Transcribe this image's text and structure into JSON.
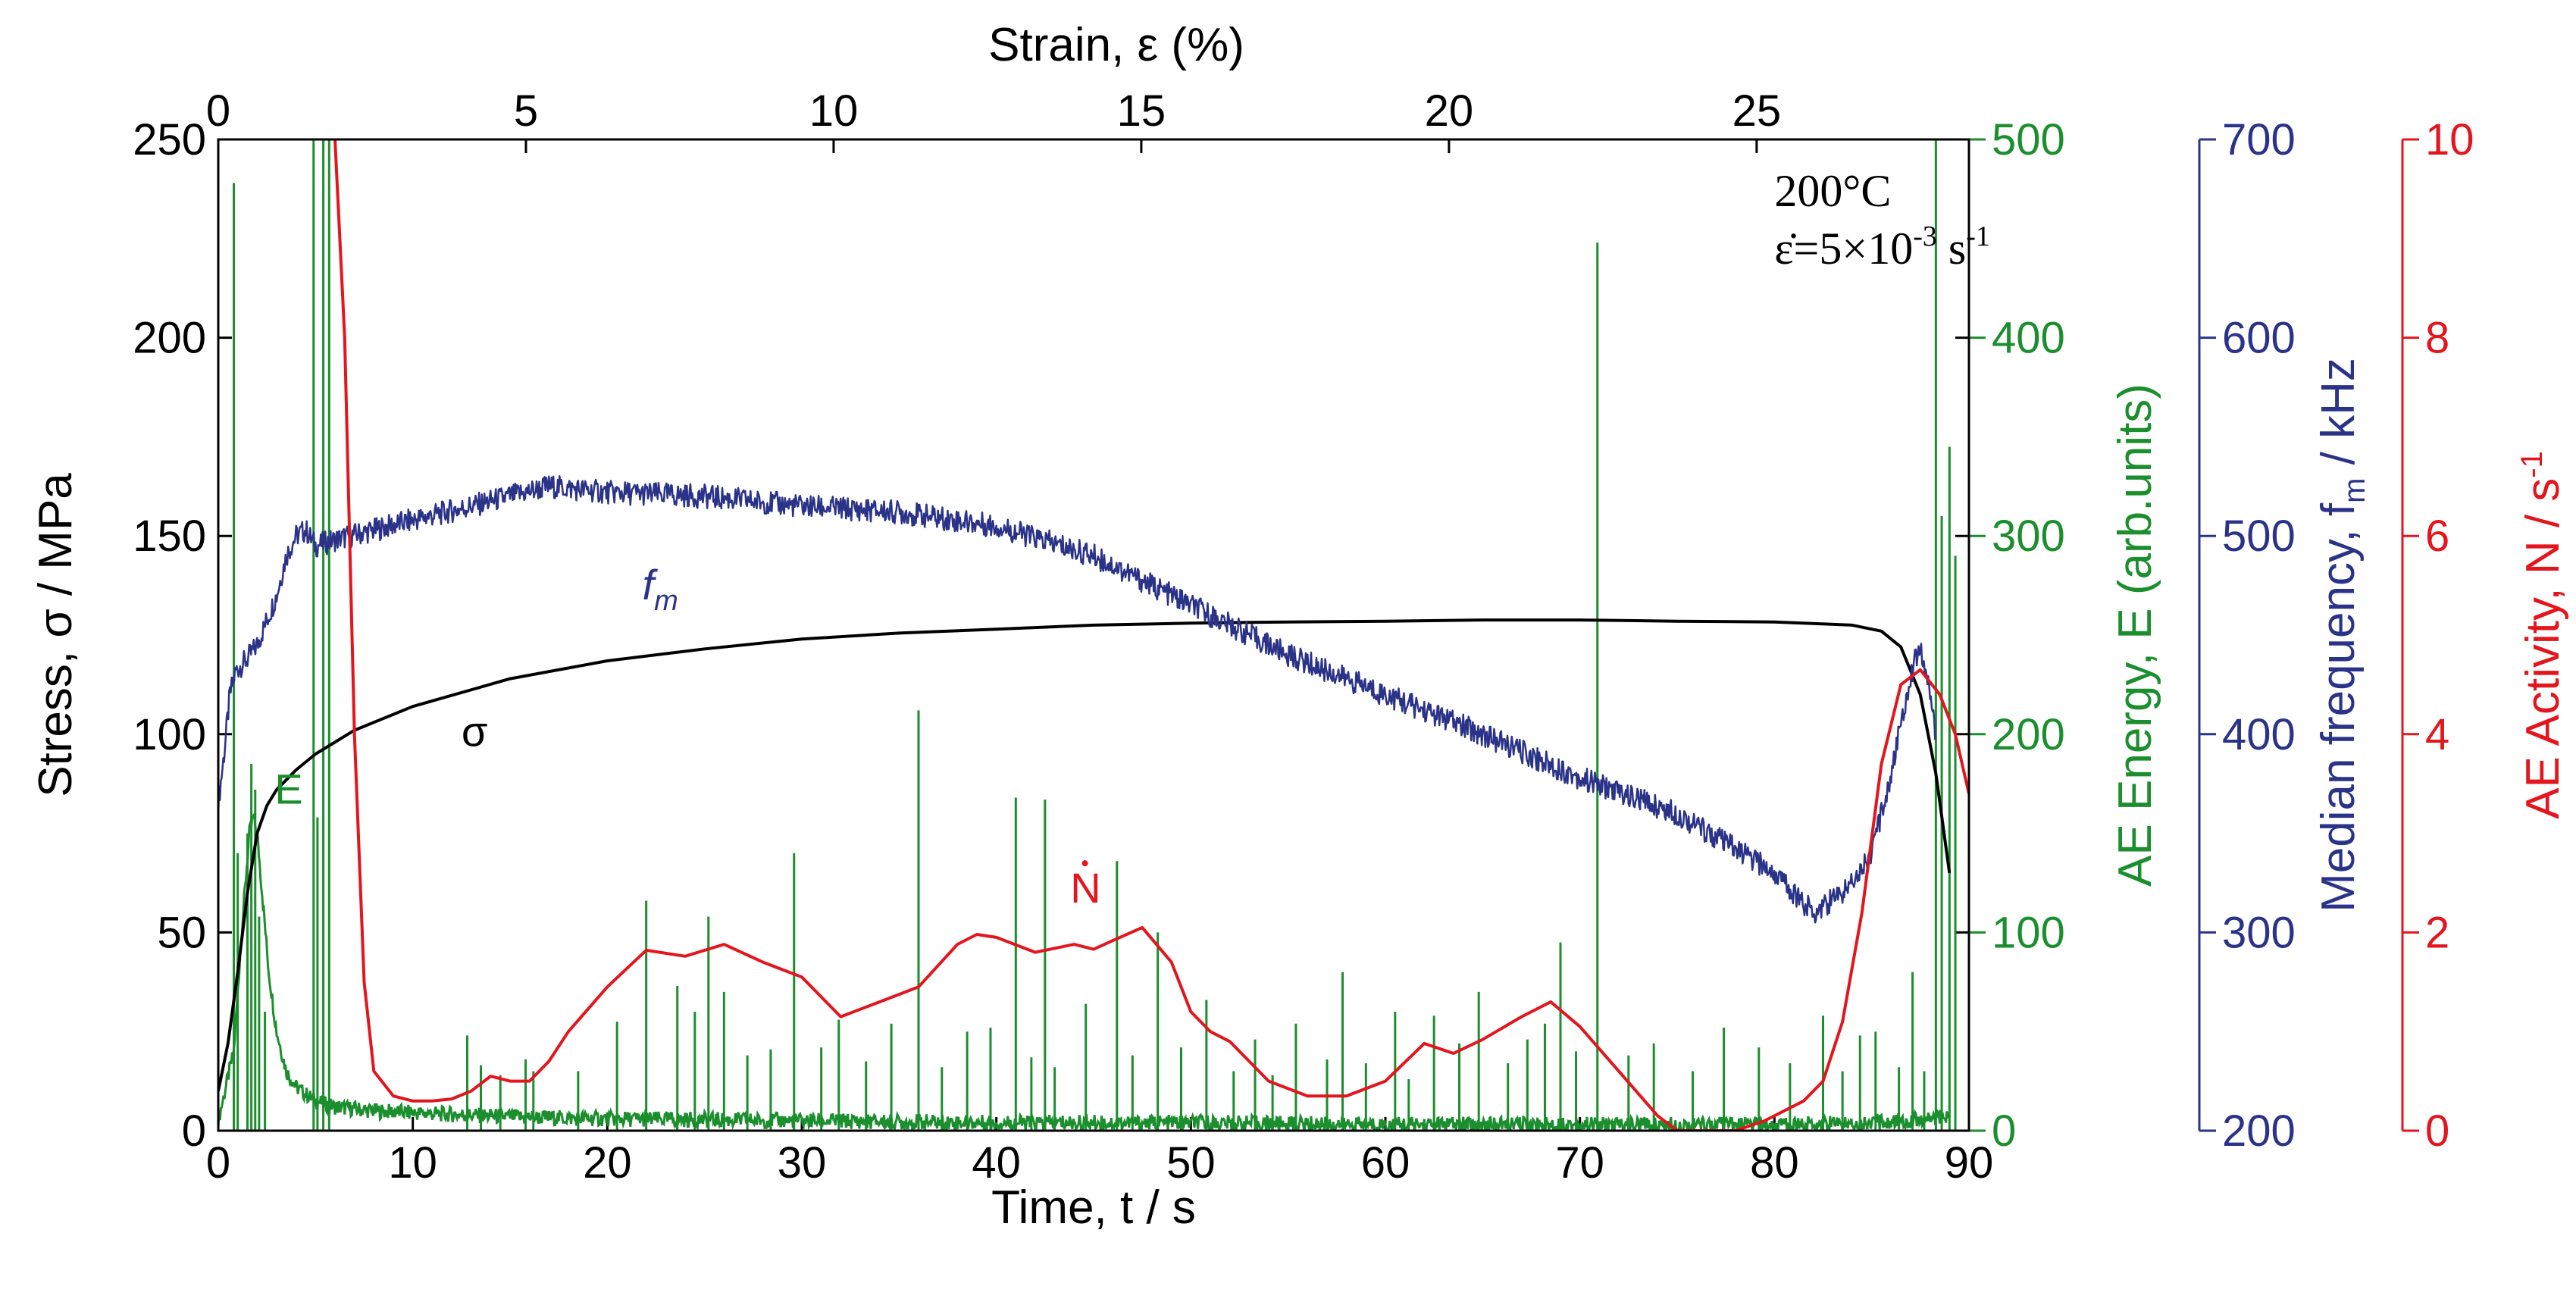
{
  "chart_data": {
    "type": "line",
    "annotation": {
      "temperature": "200°C",
      "rate_prefix": "ε̇=5×10",
      "rate_exp": "-3",
      "rate_unit": " s",
      "rate_unit_exp": "-1"
    },
    "axes": {
      "x_bottom": {
        "label": "Time, t / s",
        "range": [
          0,
          90
        ],
        "ticks": [
          0,
          10,
          20,
          30,
          40,
          50,
          60,
          70,
          80,
          90
        ],
        "color": "#000000"
      },
      "x_top": {
        "label": "Strain, ε (%)",
        "range": [
          0,
          28.45
        ],
        "ticks": [
          0,
          5,
          10,
          15,
          20,
          25
        ],
        "color": "#000000"
      },
      "y_stress": {
        "label": "Stress, σ / MPa",
        "range": [
          0,
          250
        ],
        "ticks": [
          0,
          50,
          100,
          150,
          200,
          250
        ],
        "color": "#000000"
      },
      "y_energy": {
        "label": "AE Energy, E (arb.units)",
        "range": [
          0,
          500
        ],
        "ticks": [
          0,
          100,
          200,
          300,
          400,
          500
        ],
        "color": "#1b8e2d"
      },
      "y_freq": {
        "label_prefix": "Median frequency, f",
        "label_sub": "m",
        "label_suffix": " / kHz",
        "range": [
          200,
          700
        ],
        "ticks": [
          200,
          300,
          400,
          500,
          600,
          700
        ],
        "color": "#2b3388"
      },
      "y_activity": {
        "label_prefix": "AE Activity, ",
        "label_dot": "N",
        "label_suffix": " / s",
        "label_exp": "-1",
        "range": [
          0,
          10
        ],
        "ticks": [
          0,
          2,
          4,
          6,
          8,
          10
        ],
        "color": "#e3151d"
      }
    },
    "series": [
      {
        "name": "σ",
        "label": "σ",
        "axis": "y_stress",
        "color": "#000000",
        "x": [
          0,
          0.5,
          1.0,
          1.5,
          2.0,
          2.5,
          3.0,
          4.0,
          5.0,
          7.0,
          10.0,
          15.0,
          20.0,
          25.0,
          30.0,
          35.0,
          40.0,
          45.0,
          50.0,
          55.0,
          60.0,
          65.0,
          70.0,
          75.0,
          80.0,
          84.0,
          85.5,
          86.5,
          87.5,
          88.3,
          89.0
        ],
        "values": [
          10,
          22,
          40,
          60,
          75,
          82,
          86,
          91,
          95,
          101,
          107,
          114,
          118.5,
          121.5,
          124,
          125.5,
          126.5,
          127.5,
          128,
          128.3,
          128.5,
          128.8,
          128.8,
          128.5,
          128.3,
          127.5,
          126,
          122,
          110,
          90,
          65
        ]
      },
      {
        "name": "f",
        "label_base": "f",
        "label_sub": "m",
        "axis": "y_freq",
        "color": "#2b3388",
        "x": [
          0,
          0.3,
          0.6,
          0.9,
          1.5,
          2.0,
          3.0,
          3.5,
          4.0,
          4.5,
          5.0,
          6.0,
          8.0,
          10.0,
          13.0,
          17.0,
          20.0,
          25.0,
          30.0,
          35.0,
          40.0,
          45.0,
          50.0,
          55.0,
          60.0,
          65.0,
          70.0,
          75.0,
          80.0,
          82.0,
          83.5,
          85.0,
          86.0,
          87.0,
          87.5,
          88.0,
          88.3
        ],
        "values": [
          365,
          390,
          420,
          432,
          438,
          445,
          470,
          490,
          500,
          503,
          495,
          498,
          503,
          508,
          515,
          525,
          522,
          520,
          515,
          512,
          505,
          490,
          465,
          440,
          420,
          400,
          378,
          360,
          330,
          310,
          320,
          340,
          380,
          430,
          445,
          420,
          400
        ]
      },
      {
        "name": "Ṅ",
        "label": "N",
        "axis": "y_activity",
        "color": "#e3151d",
        "x": [
          6.0,
          6.5,
          7.0,
          7.5,
          8.0,
          9.0,
          10.0,
          11.0,
          12.0,
          13.0,
          14.0,
          15.0,
          16.0,
          17.0,
          18.0,
          20.0,
          22.0,
          24.0,
          26.0,
          28.0,
          30.0,
          32.0,
          34.0,
          36.0,
          38.0,
          39.0,
          40.0,
          42.0,
          44.0,
          45.0,
          46.0,
          47.5,
          49.0,
          50.0,
          51.0,
          52.0,
          54.0,
          56.0,
          58.0,
          60.0,
          62.0,
          63.5,
          65.0,
          67.0,
          68.5,
          70.0,
          72.0,
          74.0,
          75.0,
          77.0,
          78.0,
          79.5,
          81.5,
          82.5,
          83.5,
          84.5,
          85.5,
          86.5,
          87.5,
          88.5,
          89.3,
          90.0
        ],
        "values": [
          10,
          8,
          4,
          1.5,
          0.6,
          0.35,
          0.3,
          0.3,
          0.32,
          0.4,
          0.55,
          0.5,
          0.5,
          0.7,
          1.0,
          1.45,
          1.82,
          1.76,
          1.88,
          1.7,
          1.55,
          1.15,
          1.3,
          1.45,
          1.88,
          1.98,
          1.95,
          1.8,
          1.88,
          1.83,
          1.92,
          2.05,
          1.7,
          1.2,
          1.0,
          0.9,
          0.5,
          0.35,
          0.35,
          0.5,
          0.88,
          0.78,
          0.92,
          1.15,
          1.3,
          1.05,
          0.6,
          0.15,
          0.0,
          0.0,
          0.0,
          0.1,
          0.3,
          0.5,
          1.1,
          2.2,
          3.7,
          4.5,
          4.65,
          4.4,
          4.0,
          3.4
        ]
      },
      {
        "name": "E",
        "label": "E",
        "axis": "y_energy",
        "color": "#1b8e2d",
        "baseline": {
          "x": [
            0,
            0.8,
            1.2,
            1.6,
            1.8,
            2.0,
            2.3,
            2.6,
            3.0,
            3.5,
            4.0,
            5.0,
            6.0,
            8.0,
            10.0,
            15.0,
            20.0,
            30.0,
            40.0,
            50.0,
            60.0,
            70.0,
            80.0,
            85.0,
            88.0,
            89.0
          ],
          "values": [
            5,
            40,
            100,
            150,
            158,
            150,
            115,
            80,
            50,
            30,
            22,
            15,
            12,
            10,
            9,
            7,
            6,
            5,
            4,
            4,
            3,
            3,
            3,
            4,
            6,
            8
          ]
        },
        "spikes": {
          "x": [
            0.8,
            1.0,
            1.5,
            1.7,
            1.9,
            2.1,
            2.4,
            4.9,
            5.1,
            5.4,
            5.7,
            12.8,
            13.5,
            14.5,
            15.8,
            16.2,
            18.5,
            20.5,
            22.0,
            23.6,
            24.5,
            25.2,
            26.0,
            27.2,
            28.4,
            29.6,
            31.0,
            31.9,
            33.3,
            34.6,
            36.0,
            37.2,
            38.5,
            39.7,
            41.0,
            41.8,
            42.5,
            43.0,
            44.6,
            46.2,
            47.0,
            48.3,
            49.5,
            50.8,
            52.2,
            53.3,
            54.2,
            55.4,
            57.0,
            57.8,
            59.0,
            60.5,
            61.2,
            62.5,
            63.8,
            64.8,
            66.3,
            67.3,
            68.2,
            69.0,
            69.8,
            70.9,
            72.5,
            73.8,
            75.8,
            77.4,
            79.2,
            80.8,
            82.5,
            83.5,
            84.4,
            85.2,
            86.4,
            87.1,
            87.7,
            88.3,
            88.6,
            89.0,
            89.3
          ],
          "values": [
            478,
            140,
            150,
            185,
            172,
            108,
            60,
            500,
            158,
            500,
            500,
            48,
            33,
            28,
            36,
            30,
            30,
            55,
            116,
            73,
            60,
            108,
            70,
            38,
            41,
            140,
            42,
            56,
            35,
            54,
            212,
            32,
            50,
            52,
            168,
            37,
            167,
            32,
            64,
            136,
            38,
            100,
            42,
            66,
            30,
            46,
            28,
            54,
            36,
            80,
            34,
            60,
            26,
            58,
            44,
            70,
            34,
            46,
            54,
            95,
            40,
            448,
            38,
            44,
            30,
            52,
            42,
            34,
            58,
            30,
            48,
            50,
            32,
            80,
            30,
            500,
            310,
            345,
            290
          ]
        }
      }
    ]
  }
}
